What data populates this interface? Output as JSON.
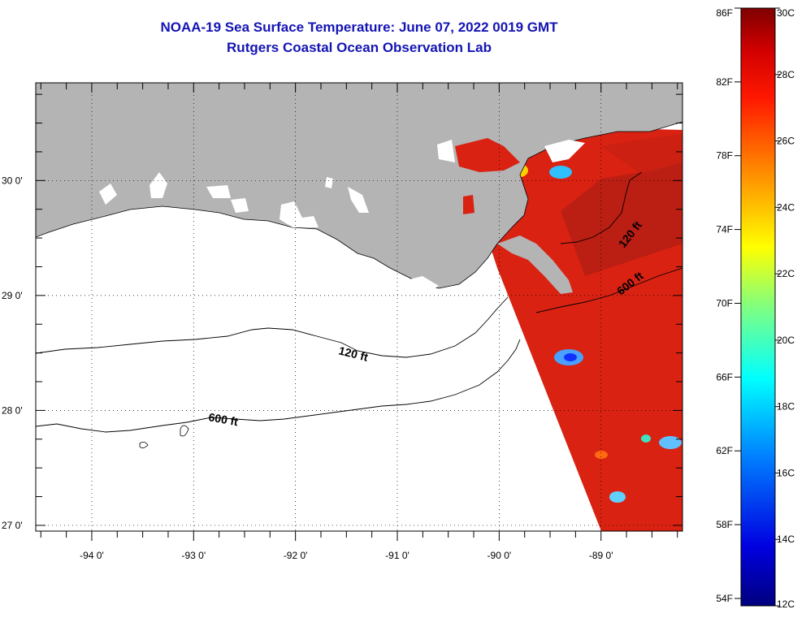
{
  "title": {
    "line1": "NOAA-19 Sea Surface Temperature:  June 07, 2022 0019 GMT",
    "line2": "Rutgers Coastal Ocean Observation Lab"
  },
  "map": {
    "lon_range": [
      -94.55,
      -88.2
    ],
    "lat_range": [
      26.95,
      30.85
    ],
    "lon_ticks": [
      {
        "value": -94,
        "label": "-94 0'"
      },
      {
        "value": -93,
        "label": "-93 0'"
      },
      {
        "value": -92,
        "label": "-92 0'"
      },
      {
        "value": -91,
        "label": "-91 0'"
      },
      {
        "value": -90,
        "label": "-90 0'"
      },
      {
        "value": -89,
        "label": "-89 0'"
      }
    ],
    "lat_ticks": [
      {
        "value": 30,
        "label": "30 0'"
      },
      {
        "value": 29,
        "label": "29 0'"
      },
      {
        "value": 28,
        "label": "28 0'"
      },
      {
        "value": 27,
        "label": "27 0'"
      }
    ],
    "land_color": "#b4b4b4",
    "ocean_color": "#ffffff",
    "grid": true,
    "contours": [
      {
        "label": "120 ft"
      },
      {
        "label": "600 ft"
      },
      {
        "label": "120 ft"
      },
      {
        "label": "600 ft"
      }
    ]
  },
  "colorbar": {
    "f_labels": [
      {
        "value": 86,
        "label": "86F"
      },
      {
        "value": 82,
        "label": "82F"
      },
      {
        "value": 78,
        "label": "78F"
      },
      {
        "value": 74,
        "label": "74F"
      },
      {
        "value": 70,
        "label": "70F"
      },
      {
        "value": 66,
        "label": "66F"
      },
      {
        "value": 62,
        "label": "62F"
      },
      {
        "value": 58,
        "label": "58F"
      },
      {
        "value": 54,
        "label": "54F"
      }
    ],
    "c_labels": [
      {
        "value": 30,
        "label": "30C"
      },
      {
        "value": 28,
        "label": "28C"
      },
      {
        "value": 26,
        "label": "26C"
      },
      {
        "value": 24,
        "label": "24C"
      },
      {
        "value": 22,
        "label": "22C"
      },
      {
        "value": 20,
        "label": "20C"
      },
      {
        "value": 18,
        "label": "18C"
      },
      {
        "value": 16,
        "label": "16C"
      },
      {
        "value": 14,
        "label": "14C"
      },
      {
        "value": 12,
        "label": "12C"
      }
    ],
    "range_c": [
      12,
      30
    ],
    "colors": [
      "#00007f",
      "#0000ff",
      "#007fff",
      "#00ffff",
      "#7fff7f",
      "#ffff00",
      "#ff7f00",
      "#ff0000",
      "#7f0000"
    ]
  }
}
